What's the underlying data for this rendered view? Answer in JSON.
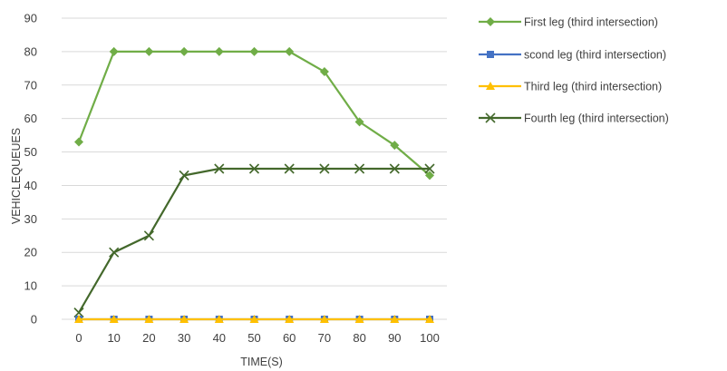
{
  "chart_data": {
    "type": "line",
    "title": "",
    "xlabel": "TIME(S)",
    "ylabel": "VEHICLEQUEUES",
    "x": [
      0,
      10,
      20,
      30,
      40,
      50,
      60,
      70,
      80,
      90,
      100
    ],
    "xticks": [
      "0",
      "10",
      "20",
      "30",
      "40",
      "50",
      "60",
      "70",
      "80",
      "90",
      "100"
    ],
    "ylim": [
      0,
      90
    ],
    "yticks": [
      "0",
      "10",
      "20",
      "30",
      "40",
      "50",
      "60",
      "70",
      "80",
      "90"
    ],
    "grid": true,
    "legend_position": "right",
    "series": [
      {
        "name": "First leg (third intersection)",
        "color": "#70ad47",
        "marker": "diamond",
        "values": [
          53,
          80,
          80,
          80,
          80,
          80,
          80,
          74,
          59,
          52,
          43
        ]
      },
      {
        "name": "scond leg (third intersection)",
        "color": "#4472c4",
        "marker": "square",
        "values": [
          0,
          0,
          0,
          0,
          0,
          0,
          0,
          0,
          0,
          0,
          0
        ]
      },
      {
        "name": "Third leg (third intersection)",
        "color": "#ffc000",
        "marker": "triangle",
        "values": [
          0,
          0,
          0,
          0,
          0,
          0,
          0,
          0,
          0,
          0,
          0
        ]
      },
      {
        "name": "Fourth leg (third  intersection)",
        "color": "#43682b",
        "marker": "x",
        "values": [
          2,
          20,
          25,
          43,
          45,
          45,
          45,
          45,
          45,
          45,
          45
        ]
      }
    ]
  }
}
